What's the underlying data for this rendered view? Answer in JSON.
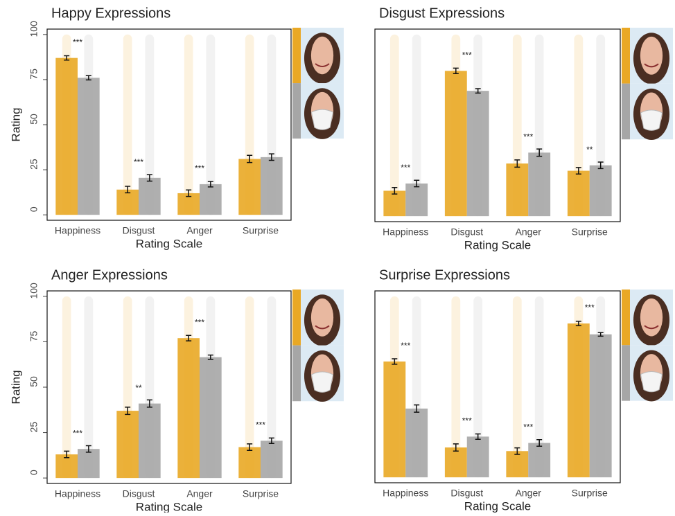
{
  "chart_data": [
    {
      "type": "bar",
      "title": "Happy Expressions",
      "ylabel": "Rating",
      "xlabel": "Rating Scale",
      "categories": [
        "Happiness",
        "Disgust",
        "Anger",
        "Surprise"
      ],
      "series": [
        {
          "color": "#e9a825",
          "values": [
            87,
            14,
            12,
            31
          ],
          "errors": [
            1.2,
            1.8,
            1.8,
            2
          ]
        },
        {
          "color": "#a6a6a6",
          "values": [
            76,
            20.5,
            17,
            32
          ],
          "errors": [
            1.2,
            1.8,
            1.5,
            1.8
          ]
        }
      ],
      "annotations": [
        "***",
        "***",
        "***",
        null
      ],
      "ylim": [
        -3,
        103
      ],
      "yticks": [
        0,
        25,
        50,
        75,
        100
      ]
    },
    {
      "type": "bar",
      "title": "Disgust Expressions",
      "xlabel": "Rating Scale",
      "categories": [
        "Happiness",
        "Disgust",
        "Anger",
        "Surprise"
      ],
      "series": [
        {
          "color": "#e9a825",
          "values": [
            14,
            80,
            29,
            25
          ],
          "errors": [
            1.8,
            1.5,
            2,
            1.8
          ]
        },
        {
          "color": "#a6a6a6",
          "values": [
            18,
            69,
            35,
            28
          ],
          "errors": [
            1.8,
            1.2,
            2,
            1.8
          ]
        }
      ],
      "annotations": [
        "***",
        "***",
        "***",
        "**"
      ],
      "ylim": [
        -3,
        103
      ]
    },
    {
      "type": "bar",
      "title": "Anger Expressions",
      "ylabel": "Rating",
      "xlabel": "Rating Scale",
      "categories": [
        "Happiness",
        "Disgust",
        "Anger",
        "Surprise"
      ],
      "series": [
        {
          "color": "#e9a825",
          "values": [
            13,
            37,
            77,
            17
          ],
          "errors": [
            1.8,
            2,
            1.5,
            1.8
          ]
        },
        {
          "color": "#a6a6a6",
          "values": [
            16,
            41,
            66.5,
            20.5
          ],
          "errors": [
            1.8,
            2,
            1.2,
            1.5
          ]
        }
      ],
      "annotations": [
        "***",
        "**",
        "***",
        "***"
      ],
      "ylim": [
        -3,
        103
      ],
      "yticks": [
        0,
        25,
        50,
        75,
        100
      ]
    },
    {
      "type": "bar",
      "title": "Surprise Expressions",
      "xlabel": "Rating Scale",
      "categories": [
        "Happiness",
        "Disgust",
        "Anger",
        "Surprise"
      ],
      "series": [
        {
          "color": "#e9a825",
          "values": [
            64,
            16.5,
            14.5,
            85
          ],
          "errors": [
            1.5,
            2,
            1.8,
            1.2
          ]
        },
        {
          "color": "#a6a6a6",
          "values": [
            38,
            22.5,
            19,
            79
          ],
          "errors": [
            2,
            1.5,
            1.8,
            1
          ]
        }
      ],
      "annotations": [
        "***",
        "***",
        "***",
        "***"
      ],
      "ylim": [
        -3,
        103
      ]
    }
  ]
}
